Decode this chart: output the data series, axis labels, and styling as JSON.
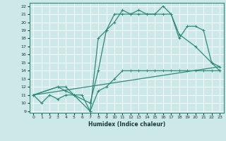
{
  "xlabel": "Humidex (Indice chaleur)",
  "bg_color": "#cce8e8",
  "line_color": "#2d8b78",
  "grid_color": "#ffffff",
  "xlim": [
    -0.5,
    23.5
  ],
  "ylim": [
    8.8,
    22.4
  ],
  "xticks": [
    0,
    1,
    2,
    3,
    4,
    5,
    6,
    7,
    8,
    9,
    10,
    11,
    12,
    13,
    14,
    15,
    16,
    17,
    18,
    19,
    20,
    21,
    22,
    23
  ],
  "yticks": [
    9,
    10,
    11,
    12,
    13,
    14,
    15,
    16,
    17,
    18,
    19,
    20,
    21,
    22
  ],
  "line1_x": [
    0,
    1,
    2,
    3,
    4,
    5,
    6,
    7,
    8,
    9,
    10,
    11,
    12,
    13,
    14,
    15,
    16,
    17,
    18,
    19,
    20,
    21,
    22,
    23
  ],
  "line1_y": [
    11,
    10,
    11,
    10.5,
    11,
    11,
    11,
    9,
    11.5,
    12,
    13,
    14,
    14,
    14,
    14,
    14,
    14,
    14,
    14,
    14,
    14,
    14,
    14,
    14
  ],
  "line2_x": [
    0,
    3,
    4,
    5,
    7,
    8,
    9,
    10,
    11,
    12,
    13,
    14,
    15,
    16,
    17,
    18,
    20,
    22,
    23
  ],
  "line2_y": [
    11,
    12,
    12,
    11,
    10,
    14,
    19,
    21,
    21,
    21,
    21,
    21,
    21,
    22,
    21,
    18.5,
    17,
    15,
    14.5
  ],
  "line3_x": [
    0,
    3,
    4,
    5,
    7,
    8,
    9,
    10,
    11,
    12,
    13,
    14,
    15,
    16,
    17,
    18,
    19,
    20,
    21,
    22,
    23
  ],
  "line3_y": [
    11,
    12,
    11.5,
    11,
    9,
    18,
    19,
    20,
    21.5,
    21,
    21.5,
    21,
    21,
    21,
    21,
    18,
    19.5,
    19.5,
    19,
    15,
    14
  ],
  "line4_x": [
    0,
    23
  ],
  "line4_y": [
    11,
    14.5
  ]
}
